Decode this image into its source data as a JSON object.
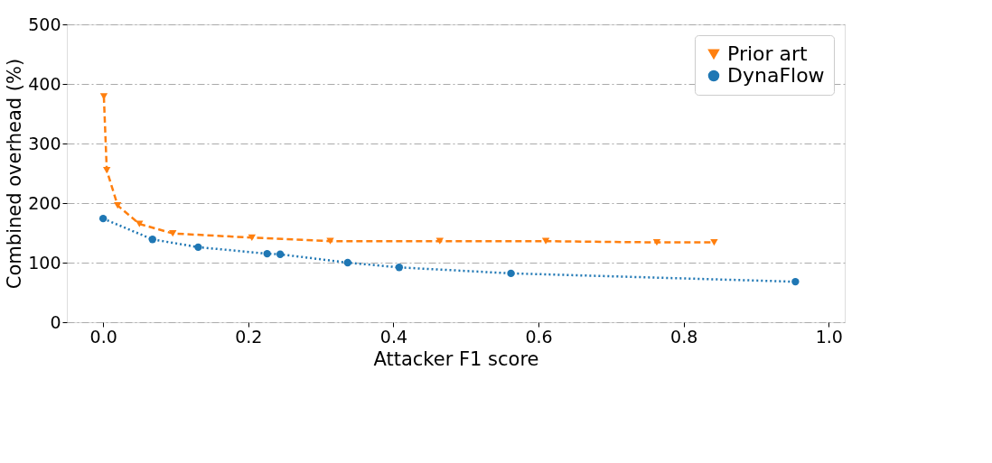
{
  "chart_data": {
    "type": "line",
    "xlabel": "Attacker F1 score",
    "ylabel": "Combined overhead (%)",
    "xlim": [
      -0.05,
      1.022
    ],
    "ylim": [
      0,
      500
    ],
    "xticks": [
      {
        "value": 0,
        "label": "0.0"
      },
      {
        "value": 0.2,
        "label": "0.2"
      },
      {
        "value": 0.4,
        "label": "0.4"
      },
      {
        "value": 0.6,
        "label": "0.6"
      },
      {
        "value": 0.8,
        "label": "0.8"
      },
      {
        "value": 1,
        "label": "1.0"
      }
    ],
    "yticks": [
      0,
      100,
      200,
      300,
      400,
      500
    ],
    "grid": "y",
    "legend": "top right",
    "series": [
      {
        "name": "Prior art",
        "color": "#ff7f0e",
        "marker": "triangle",
        "line_style": "dashed",
        "x": [
          0.001,
          0.005,
          0.02,
          0.05,
          0.096,
          0.205,
          0.313,
          0.464,
          0.61,
          0.763,
          0.842
        ],
        "values": [
          379,
          255,
          196,
          165,
          149,
          142,
          136,
          136,
          136,
          134,
          134
        ]
      },
      {
        "name": "DynaFlow",
        "color": "#1f77b4",
        "marker": "circle",
        "line_style": "dotted",
        "x": [
          0.0,
          0.068,
          0.131,
          0.226,
          0.244,
          0.337,
          0.408,
          0.562,
          0.954
        ],
        "values": [
          174,
          139,
          126,
          115,
          114,
          100,
          92,
          82,
          68
        ]
      }
    ]
  }
}
